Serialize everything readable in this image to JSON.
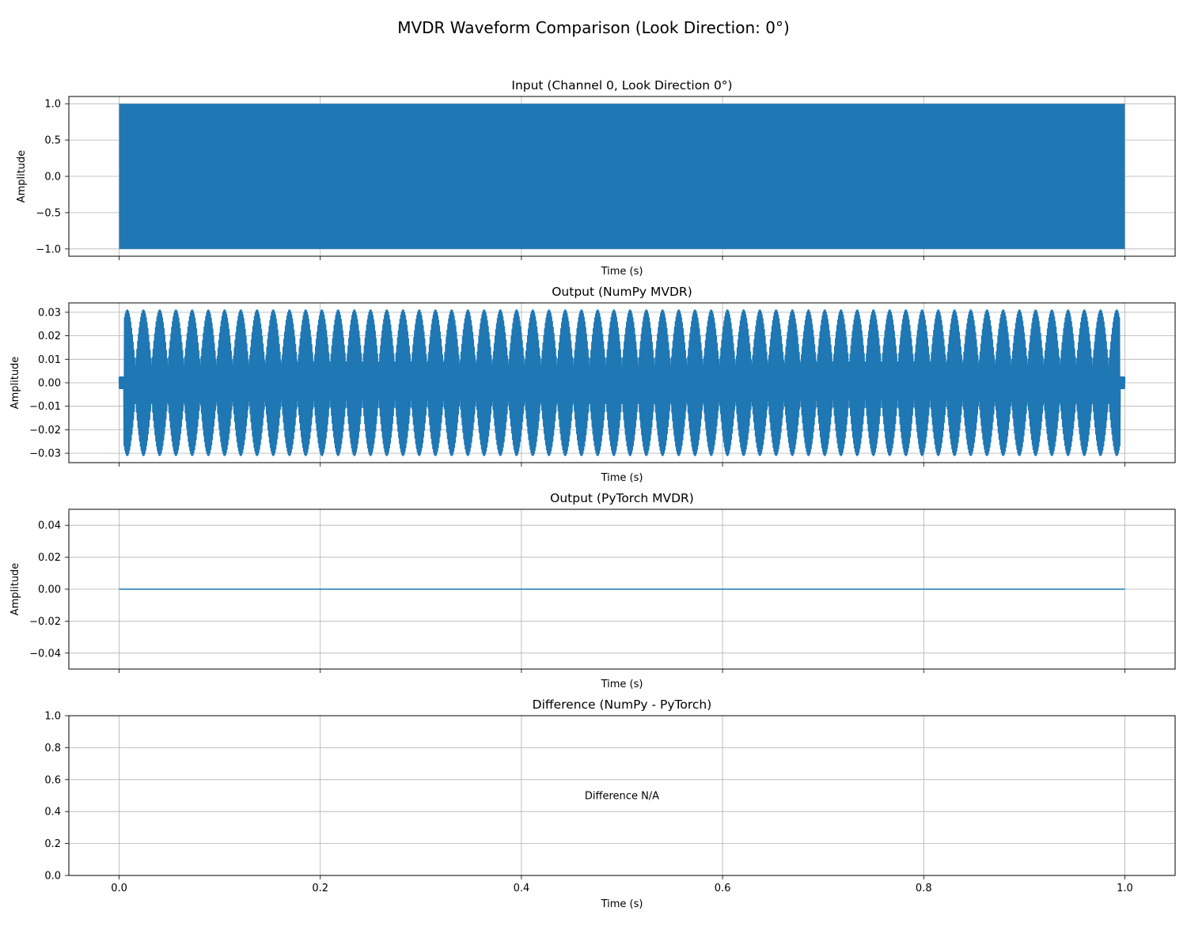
{
  "figure": {
    "title": "MVDR Waveform Comparison (Look Direction: 0°)"
  },
  "chart_data": [
    {
      "type": "line",
      "title": "Input (Channel 0, Look Direction 0°)",
      "xlabel": "Time (s)",
      "ylabel": "Amplitude",
      "xlim": [
        -0.05,
        1.05
      ],
      "ylim": [
        -1.1,
        1.1
      ],
      "xticks": [
        0.0,
        0.2,
        0.4,
        0.6,
        0.8,
        1.0
      ],
      "yticks": [
        1.0,
        0.5,
        0.0,
        -0.5,
        -1.0
      ],
      "ytick_labels": [
        "1.0",
        "0.5",
        "0.0",
        "−0.5",
        "−1.0"
      ],
      "show_xtick_labels": false,
      "grid": true,
      "color": "#1f77b4",
      "series": [
        {
          "name": "Channel 0",
          "kind": "dense_oscillation",
          "t_start": 0.0,
          "t_end": 1.0,
          "amplitude": 1.0
        }
      ]
    },
    {
      "type": "line",
      "title": "Output (NumPy MVDR)",
      "xlabel": "Time (s)",
      "ylabel": "Amplitude",
      "xlim": [
        -0.05,
        1.05
      ],
      "ylim": [
        -0.034,
        0.034
      ],
      "xticks": [
        0.0,
        0.2,
        0.4,
        0.6,
        0.8,
        1.0
      ],
      "yticks": [
        0.03,
        0.02,
        0.01,
        0.0,
        -0.01,
        -0.02,
        -0.03
      ],
      "ytick_labels": [
        "0.03",
        "0.02",
        "0.01",
        "0.00",
        "−0.01",
        "−0.02",
        "−0.03"
      ],
      "show_xtick_labels": false,
      "grid": true,
      "color": "#1f77b4",
      "series": [
        {
          "name": "NumPy MVDR output",
          "kind": "beating_envelope",
          "t_start": 0.0,
          "t_end": 1.0,
          "amplitude": 0.031,
          "min_amplitude": 0.007,
          "beat_count": 62,
          "taper_start": 0.005,
          "taper_end": 0.995
        }
      ]
    },
    {
      "type": "line",
      "title": "Output (PyTorch MVDR)",
      "xlabel": "Time (s)",
      "ylabel": "Amplitude",
      "xlim": [
        -0.05,
        1.05
      ],
      "ylim": [
        -0.05,
        0.05
      ],
      "xticks": [
        0.0,
        0.2,
        0.4,
        0.6,
        0.8,
        1.0
      ],
      "yticks": [
        0.04,
        0.02,
        0.0,
        -0.02,
        -0.04
      ],
      "ytick_labels": [
        "0.04",
        "0.02",
        "0.00",
        "−0.02",
        "−0.04"
      ],
      "show_xtick_labels": false,
      "grid": true,
      "color": "#1f77b4",
      "series": [
        {
          "name": "PyTorch MVDR output",
          "kind": "constant",
          "x": [
            0.0,
            1.0
          ],
          "y": [
            0.0,
            0.0
          ]
        }
      ]
    },
    {
      "type": "line",
      "title": "Difference (NumPy - PyTorch)",
      "xlabel": "Time (s)",
      "ylabel": "",
      "xlim": [
        -0.05,
        1.05
      ],
      "ylim": [
        0.0,
        1.0
      ],
      "xticks": [
        0.0,
        0.2,
        0.4,
        0.6,
        0.8,
        1.0
      ],
      "yticks": [
        1.0,
        0.8,
        0.6,
        0.4,
        0.2,
        0.0
      ],
      "ytick_labels": [
        "1.0",
        "0.8",
        "0.6",
        "0.4",
        "0.2",
        "0.0"
      ],
      "show_xtick_labels": true,
      "xtick_labels": [
        "0.0",
        "0.2",
        "0.4",
        "0.6",
        "0.8",
        "1.0"
      ],
      "grid": true,
      "color": "#1f77b4",
      "series": [],
      "annotation": {
        "text": "Difference N/A",
        "x": 0.5,
        "y": 0.5
      }
    }
  ]
}
